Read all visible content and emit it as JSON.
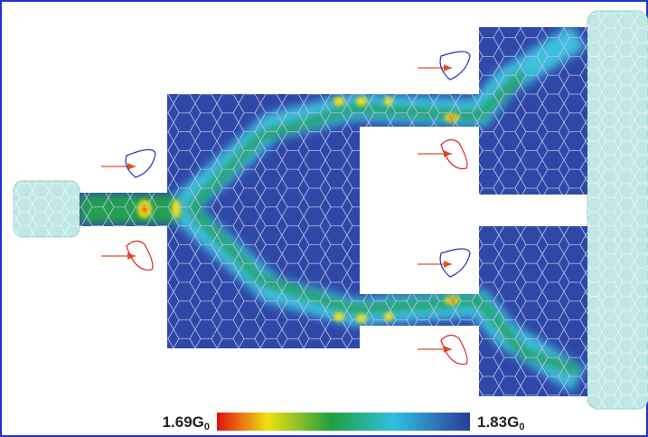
{
  "colorbar": {
    "min_label": {
      "text": "1.69G",
      "subscript": "0"
    },
    "max_label": {
      "text": "1.83G",
      "subscript": "0"
    }
  }
}
